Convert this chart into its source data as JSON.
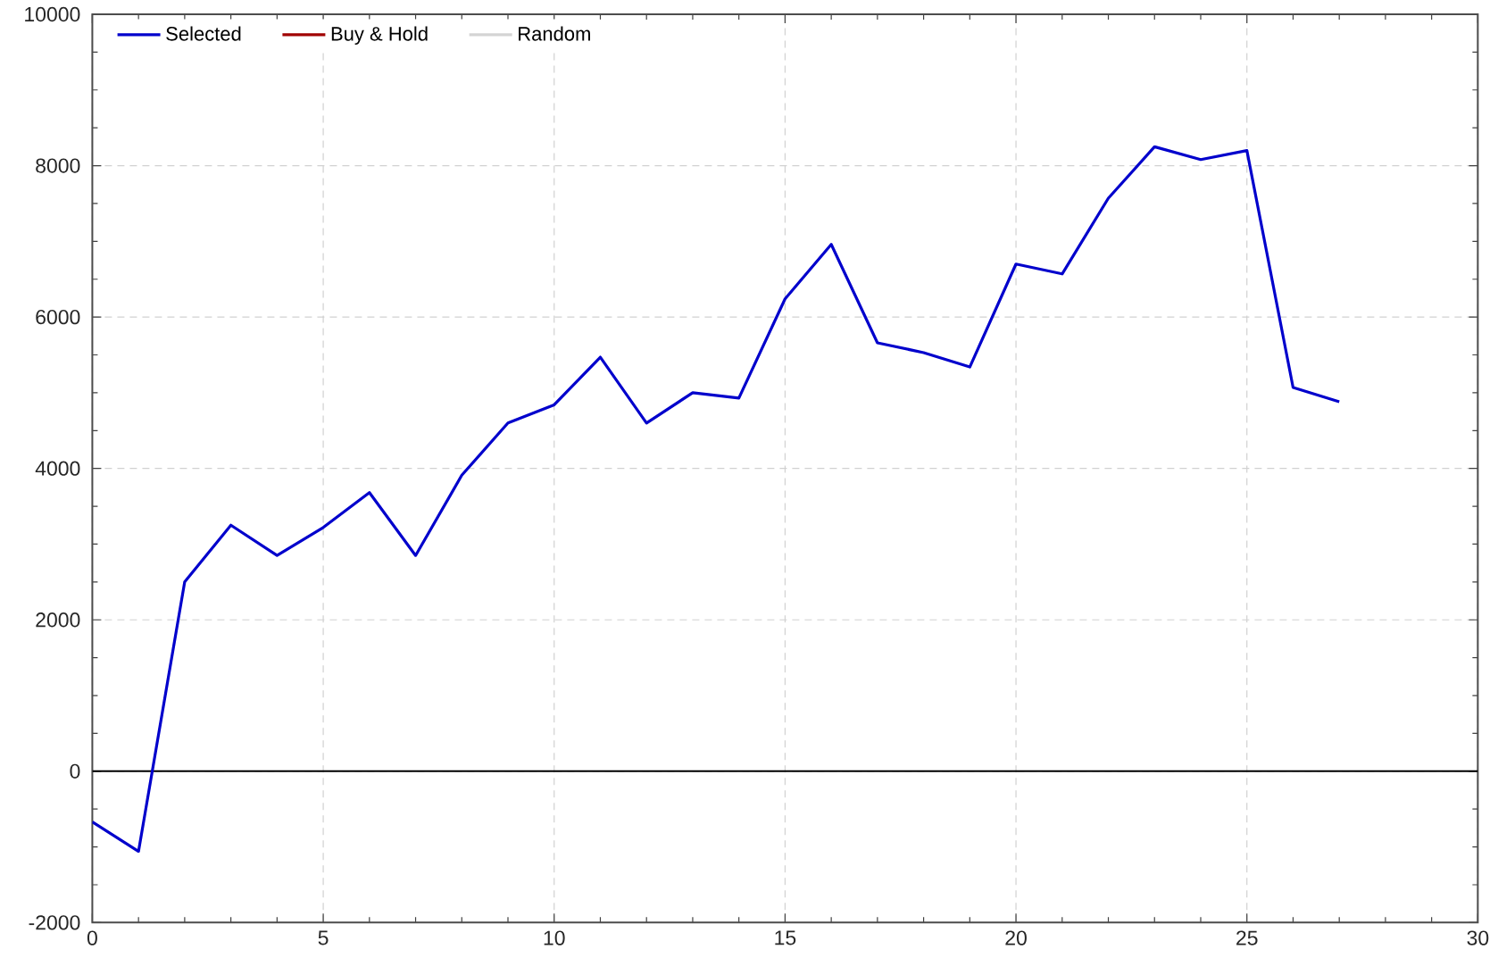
{
  "chart_data": {
    "type": "line",
    "x": [
      0,
      1,
      2,
      3,
      4,
      5,
      6,
      7,
      8,
      9,
      10,
      11,
      12,
      13,
      14,
      15,
      16,
      17,
      18,
      19,
      20,
      21,
      22,
      23,
      24,
      25,
      26,
      27
    ],
    "series": [
      {
        "name": "Selected",
        "color": "#0000cc",
        "values": [
          -670,
          -1060,
          2500,
          3250,
          2850,
          3220,
          3680,
          2850,
          3910,
          4600,
          4840,
          5470,
          4600,
          5000,
          4930,
          6240,
          6960,
          5660,
          5530,
          5340,
          6700,
          6570,
          7570,
          8250,
          8080,
          8200,
          5070,
          4880
        ]
      },
      {
        "name": "Buy & Hold",
        "color": "#a00000",
        "values": [
          null,
          null,
          null,
          null,
          null,
          null,
          null,
          null,
          null,
          null,
          null,
          null,
          null,
          null,
          null,
          null,
          null,
          null,
          null,
          null,
          null,
          null,
          null,
          null,
          null,
          null,
          null,
          null
        ]
      },
      {
        "name": "Random",
        "color": "#d4d4d4",
        "values": [
          null,
          null,
          null,
          null,
          null,
          null,
          null,
          null,
          null,
          null,
          null,
          null,
          null,
          null,
          null,
          null,
          null,
          null,
          null,
          null,
          null,
          null,
          null,
          null,
          null,
          null,
          null,
          null
        ]
      }
    ],
    "xlim": [
      0,
      30
    ],
    "xticks": [
      0,
      5,
      10,
      15,
      20,
      25,
      30
    ],
    "ylim": [
      -2000,
      10000
    ],
    "yticks": [
      -2000,
      0,
      2000,
      4000,
      6000,
      8000,
      10000
    ],
    "grid": true,
    "legend": "top left",
    "line_style": "solid",
    "ref_lines": [
      {
        "axis": "y",
        "value": 0,
        "color": "#000000"
      }
    ]
  }
}
